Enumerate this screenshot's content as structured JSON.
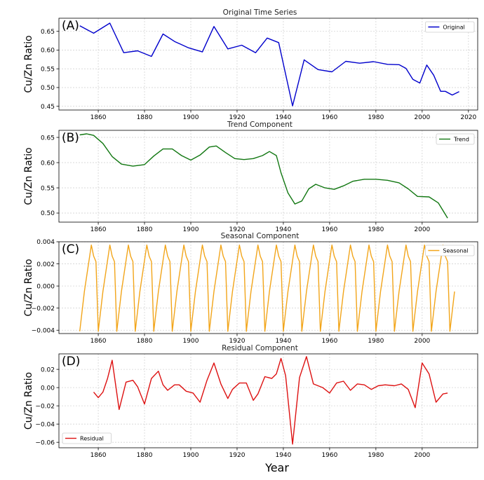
{
  "figure": {
    "xlabel": "Year"
  },
  "chart_data": [
    {
      "type": "line",
      "panel_label": "(A)",
      "title": "Original Time Series",
      "ylabel": "Cu/Zn Ratio",
      "xlim": [
        1843,
        2024
      ],
      "ylim": [
        0.44,
        0.685
      ],
      "xticks": [
        1860,
        1880,
        1900,
        1920,
        1940,
        1960,
        1980,
        2000,
        2020
      ],
      "yticks": [
        0.45,
        0.5,
        0.55,
        0.6,
        0.65
      ],
      "ytick_labels": [
        "0.45",
        "0.50",
        "0.55",
        "0.60",
        "0.65"
      ],
      "grid": true,
      "legend": "top-right",
      "series": [
        {
          "name": "Original",
          "color": "#0000cc",
          "x": [
            1852,
            1858,
            1865,
            1871,
            1877,
            1883,
            1888,
            1893,
            1899,
            1905,
            1910,
            1916,
            1922,
            1928,
            1933,
            1938,
            1944,
            1949,
            1955,
            1961,
            1967,
            1973,
            1979,
            1985,
            1990,
            1993,
            1996,
            1999,
            2002,
            2005,
            2008,
            2010,
            2013,
            2016
          ],
          "y": [
            0.665,
            0.645,
            0.672,
            0.593,
            0.598,
            0.583,
            0.643,
            0.623,
            0.606,
            0.595,
            0.663,
            0.603,
            0.613,
            0.593,
            0.632,
            0.62,
            0.451,
            0.574,
            0.548,
            0.542,
            0.57,
            0.565,
            0.569,
            0.562,
            0.561,
            0.551,
            0.522,
            0.512,
            0.56,
            0.533,
            0.49,
            0.49,
            0.48,
            0.489
          ]
        }
      ]
    },
    {
      "type": "line",
      "panel_label": "(B)",
      "title": "Trend Component",
      "ylabel": "Cu/Zn Ratio",
      "xlim": [
        1843,
        2024
      ],
      "ylim": [
        0.482,
        0.664
      ],
      "xticks": [
        1860,
        1880,
        1900,
        1920,
        1940,
        1960,
        1980,
        2000
      ],
      "yticks": [
        0.5,
        0.55,
        0.6,
        0.65
      ],
      "ytick_labels": [
        "0.50",
        "0.55",
        "0.60",
        "0.65"
      ],
      "grid": true,
      "legend": "top-right",
      "series": [
        {
          "name": "Trend",
          "color": "#117711",
          "x": [
            1852,
            1855,
            1858,
            1862,
            1866,
            1870,
            1875,
            1880,
            1884,
            1888,
            1892,
            1896,
            1900,
            1904,
            1908,
            1911,
            1915,
            1919,
            1923,
            1927,
            1931,
            1934,
            1937,
            1939,
            1942,
            1945,
            1948,
            1951,
            1954,
            1958,
            1962,
            1966,
            1970,
            1975,
            1980,
            1985,
            1990,
            1994,
            1998,
            2003,
            2007,
            2011
          ],
          "y": [
            0.655,
            0.657,
            0.654,
            0.638,
            0.612,
            0.597,
            0.593,
            0.596,
            0.613,
            0.627,
            0.627,
            0.614,
            0.605,
            0.615,
            0.631,
            0.633,
            0.62,
            0.608,
            0.606,
            0.608,
            0.614,
            0.622,
            0.614,
            0.58,
            0.54,
            0.518,
            0.524,
            0.548,
            0.557,
            0.55,
            0.547,
            0.554,
            0.563,
            0.567,
            0.567,
            0.565,
            0.56,
            0.548,
            0.533,
            0.532,
            0.52,
            0.49
          ]
        }
      ]
    },
    {
      "type": "line",
      "panel_label": "(C)",
      "title": "Seasonal Component",
      "ylabel": "Cu/Zn Ratio",
      "xlim": [
        1843,
        2024
      ],
      "ylim": [
        -0.0043,
        0.004
      ],
      "xticks": [
        1860,
        1880,
        1900,
        1920,
        1940,
        1960,
        1980,
        2000
      ],
      "yticks": [
        -0.004,
        -0.002,
        0.0,
        0.002,
        0.004
      ],
      "ytick_labels": [
        "−0.004",
        "−0.002",
        "0.000",
        "0.002",
        "0.004"
      ],
      "grid": true,
      "legend": "top-right",
      "series": [
        {
          "name": "Seasonal",
          "color": "#f2a51a",
          "period": 8,
          "x_start": 1852,
          "x_end": 2016,
          "cycle_offsets": [
            0,
            2,
            5,
            6,
            7
          ],
          "cycle_values": [
            -0.0041,
            -0.0005,
            0.0037,
            0.0027,
            0.0022
          ]
        }
      ]
    },
    {
      "type": "line",
      "panel_label": "(D)",
      "title": "Residual Component",
      "ylabel": "Cu/Zn Ratio",
      "xlim": [
        1843,
        2024
      ],
      "ylim": [
        -0.066,
        0.037
      ],
      "xticks": [
        1860,
        1880,
        1900,
        1920,
        1940,
        1960,
        1980,
        2000
      ],
      "yticks": [
        -0.06,
        -0.04,
        -0.02,
        0.0,
        0.02
      ],
      "ytick_labels": [
        "−0.06",
        "−0.04",
        "−0.02",
        "0.00",
        "0.02"
      ],
      "grid": true,
      "legend": "bottom-left",
      "series": [
        {
          "name": "Residual",
          "color": "#dd1111",
          "x": [
            1858,
            1860,
            1862,
            1864,
            1866,
            1869,
            1872,
            1875,
            1877,
            1880,
            1883,
            1886,
            1888,
            1890,
            1893,
            1895,
            1898,
            1901,
            1904,
            1907,
            1910,
            1913,
            1916,
            1918,
            1921,
            1924,
            1927,
            1929,
            1932,
            1935,
            1937,
            1939,
            1941,
            1944,
            1947,
            1950,
            1953,
            1957,
            1960,
            1963,
            1966,
            1969,
            1972,
            1975,
            1978,
            1981,
            1984,
            1988,
            1991,
            1994,
            1997,
            2000,
            2003,
            2006,
            2009,
            2011
          ],
          "y": [
            -0.005,
            -0.011,
            -0.005,
            0.01,
            0.03,
            -0.024,
            0.006,
            0.008,
            0.001,
            -0.018,
            0.01,
            0.018,
            0.003,
            -0.003,
            0.003,
            0.003,
            -0.004,
            -0.006,
            -0.016,
            0.008,
            0.027,
            0.004,
            -0.012,
            -0.002,
            0.005,
            0.005,
            -0.014,
            -0.007,
            0.012,
            0.01,
            0.015,
            0.032,
            0.013,
            -0.062,
            0.011,
            0.034,
            0.004,
            0.0,
            -0.006,
            0.005,
            0.007,
            -0.003,
            0.004,
            0.003,
            -0.002,
            0.002,
            0.003,
            0.002,
            0.004,
            -0.002,
            -0.022,
            0.027,
            0.015,
            -0.016,
            -0.007,
            -0.006
          ]
        }
      ]
    }
  ]
}
